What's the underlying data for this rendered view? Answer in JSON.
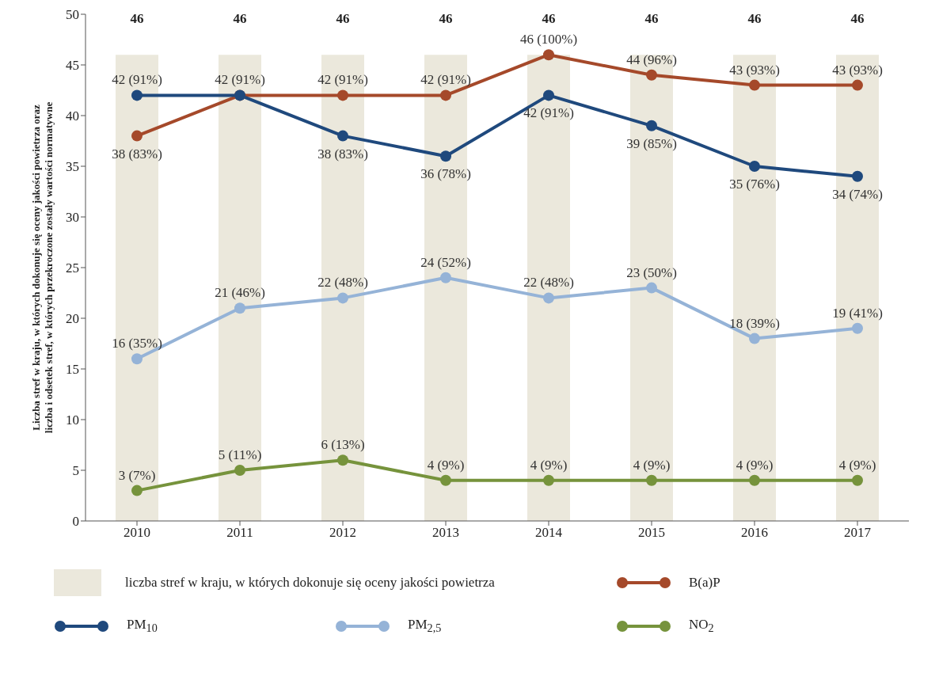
{
  "chart_data": {
    "type": "line",
    "ylabel": "Liczba stref w kraju, w których dokonuje się oceny jakości powietrza oraz liczba i odsetek stref, w których przekroczone zostały wartości normatywne",
    "categories": [
      "2010",
      "2011",
      "2012",
      "2013",
      "2014",
      "2015",
      "2016",
      "2017"
    ],
    "ylim": [
      0,
      50
    ],
    "yticks": [
      0,
      5,
      10,
      15,
      20,
      25,
      30,
      35,
      40,
      45,
      50
    ],
    "grid": false,
    "legend": "bottom",
    "marker": "circle",
    "line_style": "solid",
    "series": [
      {
        "type": "bar",
        "name": "liczba stref w kraju, w których dokonuje się oceny jakości powietrza",
        "color": "#ebe8dc",
        "values": [
          46,
          46,
          46,
          46,
          46,
          46,
          46,
          46
        ],
        "value_labels": [
          "46",
          "46",
          "46",
          "46",
          "46",
          "46",
          "46",
          "46"
        ]
      },
      {
        "name": "B(a)P",
        "color": "#a5492a",
        "values": [
          38,
          42,
          42,
          42,
          46,
          44,
          43,
          43
        ],
        "value_labels": [
          "38 (83%)",
          "42 (91%)",
          "42 (91%)",
          "42 (91%)",
          "46 (100%)",
          "44 (96%)",
          "43 (93%)",
          "43 (93%)"
        ]
      },
      {
        "name": "PM$_{10}$",
        "color": "#1f497d",
        "values": [
          42,
          42,
          38,
          36,
          42,
          39,
          35,
          34
        ],
        "value_labels": [
          "42 (91%)",
          null,
          "38 (83%)",
          "36 (78%)",
          "42 (91%)",
          "39 (85%)",
          "35 (76%)",
          "34 (74%)"
        ]
      },
      {
        "name": "PM$_{2,5}$",
        "color": "#95b3d7",
        "values": [
          16,
          21,
          22,
          24,
          22,
          23,
          18,
          19
        ],
        "value_labels": [
          "16 (35%)",
          "21 (46%)",
          "22 (48%)",
          "24 (52%)",
          "22 (48%)",
          "23 (50%)",
          "18 (39%)",
          "19 (41%)"
        ]
      },
      {
        "name": "NO$_{2}$",
        "color": "#76933c",
        "values": [
          3,
          5,
          6,
          4,
          4,
          4,
          4,
          4
        ],
        "value_labels": [
          "3 (7%)",
          "5 (11%)",
          "6 (13%)",
          "4 (9%)",
          "4 (9%)",
          "4 (9%)",
          "4 (9%)",
          "4 (9%)"
        ]
      }
    ]
  }
}
